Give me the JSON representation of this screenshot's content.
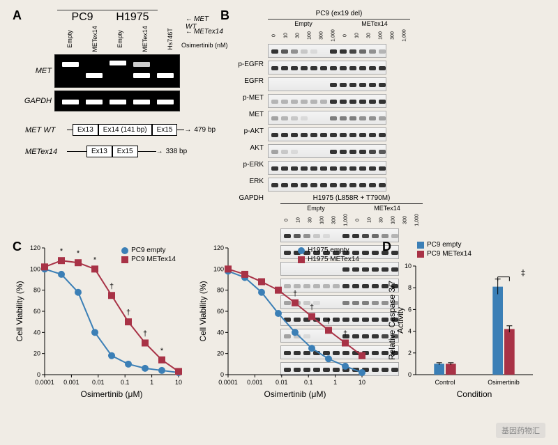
{
  "panelA": {
    "label": "A",
    "cellLines": [
      "PC9",
      "H1975"
    ],
    "lanes": [
      "Empty",
      "METex14",
      "Empty",
      "METex14",
      "Hs746T"
    ],
    "gelRows": [
      "MET",
      "GAPDH"
    ],
    "arrowLabels": [
      "MET WT",
      "METex14"
    ],
    "schema": {
      "wt": {
        "label": "MET WT",
        "boxes": [
          "Ex13",
          "Ex14 (141 bp)",
          "Ex15"
        ],
        "bp": "479 bp"
      },
      "ex14": {
        "label": "METex14",
        "boxes": [
          "Ex13",
          "Ex15"
        ],
        "bp": "338 bp"
      }
    }
  },
  "panelB": {
    "label": "B",
    "groups": [
      {
        "cell": "PC9 (ex19 del)",
        "treatments": [
          "Empty",
          "METex14"
        ]
      },
      {
        "cell": "H1975 (L858R + T790M)",
        "treatments": [
          "Empty",
          "METex14"
        ]
      }
    ],
    "doseLabel": "Osimertinib (nM)",
    "doses": [
      "0",
      "10",
      "30",
      "100",
      "300",
      "1,000",
      "0",
      "10",
      "30",
      "100",
      "300",
      "1,000"
    ],
    "targets": [
      "p-EGFR",
      "EGFR",
      "p-MET",
      "MET",
      "p-AKT",
      "AKT",
      "p-ERK",
      "ERK",
      "GAPDH"
    ],
    "bandPattern": {
      "solid": [
        1,
        1,
        1,
        1,
        1,
        1,
        1,
        1,
        1,
        1,
        1,
        1
      ],
      "pEGFR": [
        1,
        0.8,
        0.5,
        0.2,
        0.1,
        0,
        1,
        1,
        0.9,
        0.7,
        0.5,
        0.3
      ],
      "pMET": [
        0,
        0,
        0,
        0,
        0,
        0,
        1,
        1,
        1,
        1,
        1,
        1
      ],
      "MET": [
        0.3,
        0.3,
        0.3,
        0.3,
        0.3,
        0.3,
        1,
        1,
        1,
        1,
        1,
        1
      ],
      "pAKT": [
        0.4,
        0.3,
        0.2,
        0.1,
        0,
        0,
        0.6,
        0.6,
        0.6,
        0.5,
        0.5,
        0.4
      ],
      "pERK": [
        0.4,
        0.2,
        0.1,
        0,
        0,
        0,
        1,
        1,
        1,
        1,
        0.9,
        0.8
      ]
    }
  },
  "panelC": {
    "label": "C",
    "charts": [
      {
        "legend": [
          {
            "label": "PC9 empty",
            "color": "#3b7fb6",
            "shape": "circle"
          },
          {
            "label": "PC9 METex14",
            "color": "#a83246",
            "shape": "square"
          }
        ],
        "xlabel": "Osimertinib (μM)",
        "ylabel": "Cell Viability (%)",
        "ylim": [
          0,
          120
        ],
        "ytick_step": 20,
        "xticks": [
          "0.0001",
          "0.001",
          "0.01",
          "0.1",
          "1",
          "10"
        ],
        "series": [
          {
            "color": "#3b7fb6",
            "shape": "circle",
            "y": [
              100,
              95,
              78,
              40,
              18,
              10,
              6,
              4,
              2
            ]
          },
          {
            "color": "#a83246",
            "shape": "square",
            "y": [
              102,
              108,
              106,
              100,
              75,
              50,
              30,
              14,
              3
            ]
          }
        ],
        "sigMarks": [
          "*",
          "*",
          "*",
          "†",
          "†",
          "†",
          "*"
        ]
      },
      {
        "legend": [
          {
            "label": "H1975 empty",
            "color": "#3b7fb6",
            "shape": "circle"
          },
          {
            "label": "H1975 METex14",
            "color": "#a83246",
            "shape": "square"
          }
        ],
        "xlabel": "Osimertinib (μM)",
        "ylabel": "Cell Viability (%)",
        "ylim": [
          0,
          120
        ],
        "ytick_step": 20,
        "xticks": [
          "0.0001",
          "0.001",
          "0.01",
          "0.1",
          "1",
          "10"
        ],
        "series": [
          {
            "color": "#3b7fb6",
            "shape": "circle",
            "y": [
              98,
              92,
              78,
              58,
              40,
              25,
              15,
              8,
              2
            ]
          },
          {
            "color": "#a83246",
            "shape": "square",
            "y": [
              100,
              95,
              88,
              80,
              68,
              55,
              42,
              30,
              18
            ]
          }
        ],
        "sigMarks": [
          "",
          "",
          "",
          "†",
          "†",
          "†",
          "†",
          ""
        ]
      }
    ],
    "chart_style": {
      "background": "#f0ece5",
      "grid_color": "#cccccc",
      "axis_color": "#000000",
      "title_fontsize": 12,
      "label_fontsize": 12,
      "tick_fontsize": 9,
      "marker_size": 5,
      "line_width": 2
    }
  },
  "panelD": {
    "label": "D",
    "ylabel": "Relative Caspase 3/7\nActivity",
    "xlabel": "Condition",
    "legend": [
      {
        "label": "PC9 empty",
        "color": "#3b7fb6"
      },
      {
        "label": "PC9 METex14",
        "color": "#a83246"
      }
    ],
    "categories": [
      "Control",
      "Osimertinib"
    ],
    "bars": [
      {
        "group": "Control",
        "series": "empty",
        "value": 1.0,
        "err": 0.1,
        "color": "#3b7fb6"
      },
      {
        "group": "Control",
        "series": "metex14",
        "value": 1.0,
        "err": 0.1,
        "color": "#a83246"
      },
      {
        "group": "Osimertinib",
        "series": "empty",
        "value": 8.1,
        "err": 0.7,
        "color": "#3b7fb6"
      },
      {
        "group": "Osimertinib",
        "series": "metex14",
        "value": 4.2,
        "err": 0.3,
        "color": "#a83246"
      }
    ],
    "ylim": [
      0,
      10
    ],
    "ytick_step": 2,
    "sigMark": "‡",
    "style": {
      "bar_width": 0.35,
      "axis_color": "#000000",
      "label_fontsize": 12,
      "tick_fontsize": 9,
      "error_cap_width": 4
    }
  },
  "watermark": "基因药物汇"
}
